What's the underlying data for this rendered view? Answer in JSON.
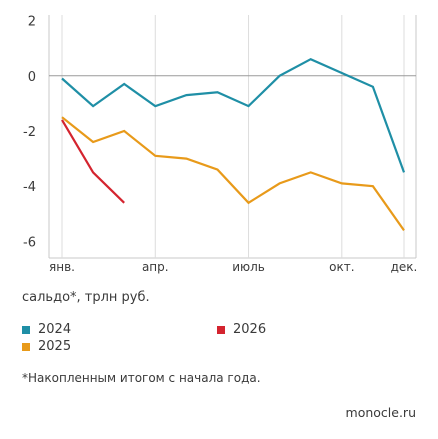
{
  "chart_data": {
    "type": "line",
    "ylabel": "сальдо*, трлн руб.",
    "ylim": [
      -6.6,
      2.2
    ],
    "yticks": [
      2,
      0,
      -2,
      -4,
      -6
    ],
    "xlim": [
      0,
      11
    ],
    "xticks": [
      {
        "pos": 0,
        "label": "янв."
      },
      {
        "pos": 3,
        "label": "апр."
      },
      {
        "pos": 6,
        "label": "июль"
      },
      {
        "pos": 9,
        "label": "окт."
      },
      {
        "pos": 11,
        "label": "дек."
      }
    ],
    "grid": "vertical",
    "series": [
      {
        "name": "2024",
        "color": "#1f8fa6",
        "values": [
          -0.1,
          -1.1,
          -0.3,
          -1.1,
          -0.7,
          -0.6,
          -1.1,
          0.0,
          0.6,
          0.1,
          -0.4,
          -3.5
        ]
      },
      {
        "name": "2025",
        "color": "#e89a1a",
        "values": [
          -1.5,
          -2.4,
          -2.0,
          -2.9,
          -3.0,
          -3.4,
          -4.6,
          -3.9,
          -3.5,
          -3.9,
          -4.0,
          -5.6
        ]
      },
      {
        "name": "2026",
        "color": "#d4242f",
        "values": [
          -1.6,
          -3.5,
          -4.6
        ]
      }
    ]
  },
  "legend": {
    "items": [
      {
        "label": "2024",
        "color": "#1f8fa6"
      },
      {
        "label": "2026",
        "color": "#d4242f"
      },
      {
        "label": "2025",
        "color": "#e89a1a"
      }
    ]
  },
  "footnote": "*Накопленным итогом с начала года.",
  "source": "monocle.ru"
}
